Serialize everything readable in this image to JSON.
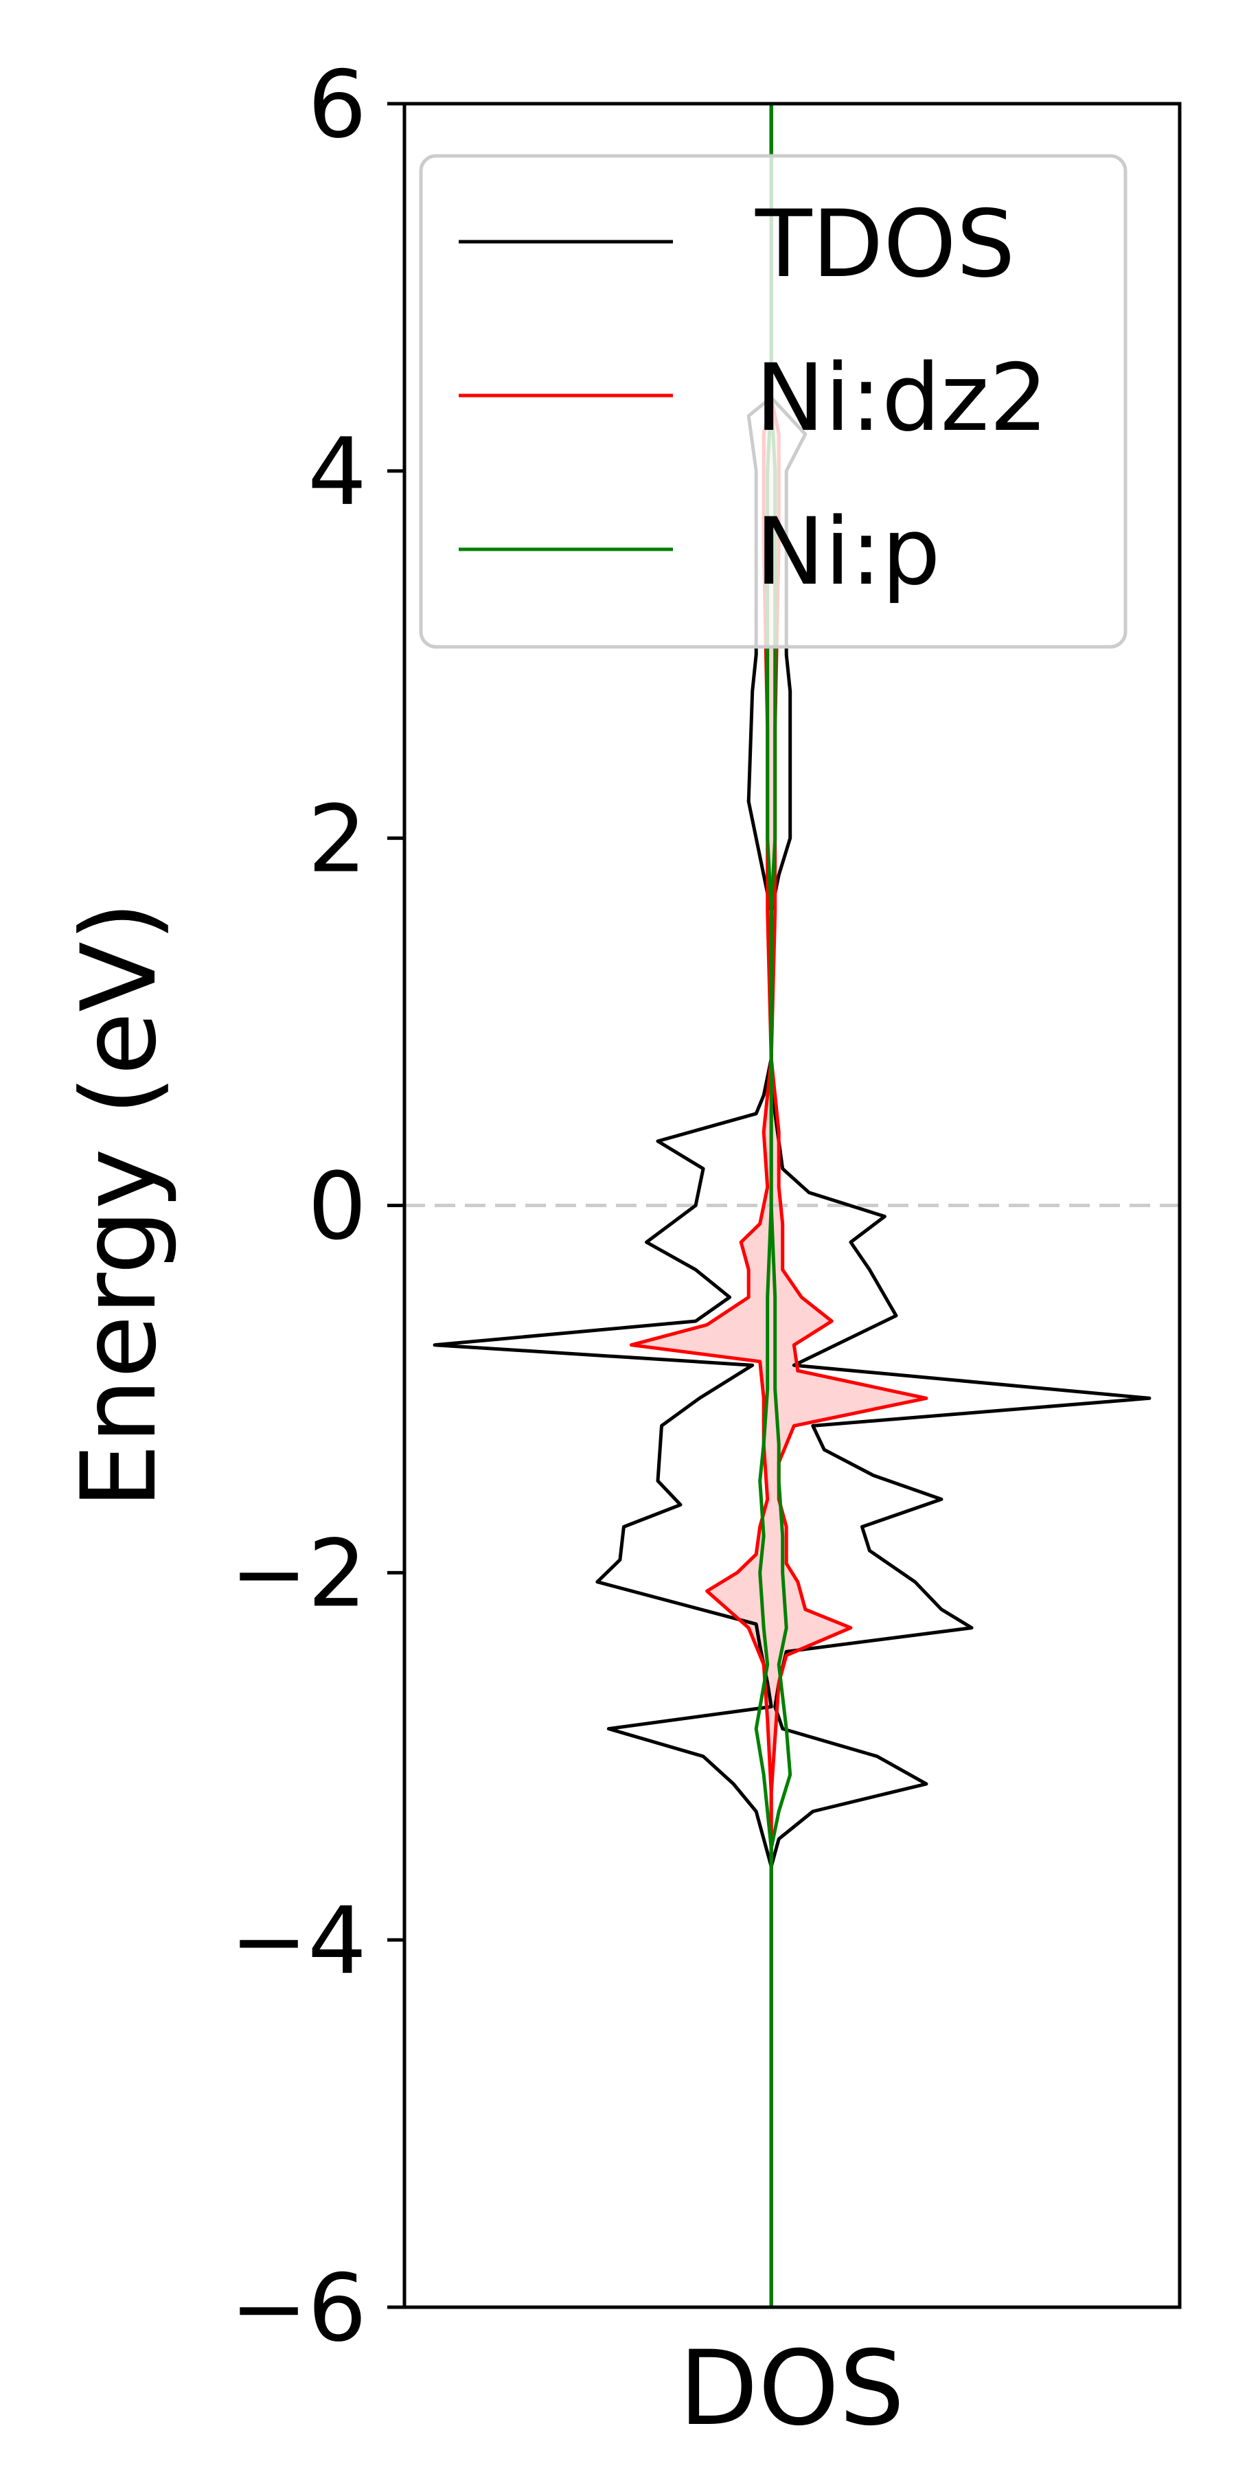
{
  "chart_data": {
    "type": "line",
    "orientation": "vertical-energy",
    "title": "",
    "xlabel": "DOS",
    "ylabel": "Energy (eV)",
    "ylim": [
      -6,
      6
    ],
    "xlim": [
      -0.97,
      1.08
    ],
    "yticks": [
      -6,
      -4,
      -2,
      0,
      2,
      4,
      6
    ],
    "ytick_labels": [
      "−6",
      "−4",
      "−2",
      "0",
      "2",
      "4",
      "6"
    ],
    "fermi_level": 0,
    "grid": false,
    "legend": {
      "placement": "top-left",
      "entries": [
        "TDOS",
        "Ni:dz2",
        "Ni:p"
      ]
    },
    "colors": {
      "TDOS": "#000000",
      "Ni:dz2": "#ff0000",
      "Ni:dz2_fill": "#ffcccc",
      "Ni:p": "#008000",
      "fermi": "#cccccc"
    },
    "series": [
      {
        "name": "TDOS",
        "side": "up",
        "points": [
          [
            0,
            6
          ],
          [
            0,
            4.4
          ],
          [
            -0.06,
            4.3
          ],
          [
            -0.04,
            4.0
          ],
          [
            -0.04,
            3.6
          ],
          [
            -0.04,
            3.0
          ],
          [
            -0.05,
            2.8
          ],
          [
            -0.06,
            2.2
          ],
          [
            -0.02,
            1.8
          ],
          [
            0,
            1.6
          ],
          [
            0,
            1.2
          ],
          [
            0,
            0.8
          ],
          [
            -0.02,
            0.6
          ],
          [
            -0.04,
            0.5
          ],
          [
            -0.3,
            0.35
          ],
          [
            -0.18,
            0.2
          ],
          [
            -0.2,
            0.0
          ],
          [
            -0.33,
            -0.2
          ],
          [
            -0.2,
            -0.35
          ],
          [
            -0.11,
            -0.5
          ],
          [
            -0.2,
            -0.63
          ],
          [
            -0.89,
            -0.76
          ],
          [
            -0.05,
            -0.87
          ],
          [
            -0.19,
            -1.05
          ],
          [
            -0.29,
            -1.2
          ],
          [
            -0.3,
            -1.5
          ],
          [
            -0.24,
            -1.63
          ],
          [
            -0.39,
            -1.75
          ],
          [
            -0.4,
            -1.93
          ],
          [
            -0.46,
            -2.05
          ],
          [
            -0.04,
            -2.28
          ],
          [
            -0.03,
            -2.4
          ],
          [
            -0.01,
            -2.6
          ],
          [
            0,
            -2.73
          ],
          [
            -0.43,
            -2.85
          ],
          [
            -0.18,
            -3.0
          ],
          [
            -0.1,
            -3.15
          ],
          [
            -0.04,
            -3.3
          ],
          [
            -0.02,
            -3.45
          ],
          [
            0,
            -3.6
          ],
          [
            0,
            -4.0
          ],
          [
            0,
            -5.0
          ],
          [
            0,
            -6
          ]
        ]
      },
      {
        "name": "TDOS",
        "side": "down",
        "points": [
          [
            0,
            6
          ],
          [
            0,
            4.4
          ],
          [
            0.09,
            4.2
          ],
          [
            0.04,
            4.0
          ],
          [
            0.04,
            3.6
          ],
          [
            0.04,
            3.0
          ],
          [
            0.05,
            2.8
          ],
          [
            0.05,
            2.0
          ],
          [
            0.02,
            1.8
          ],
          [
            0,
            1.6
          ],
          [
            0,
            1.2
          ],
          [
            0,
            0.8
          ],
          [
            0.01,
            0.5
          ],
          [
            0.03,
            0.2
          ],
          [
            0.1,
            0.07
          ],
          [
            0.3,
            -0.06
          ],
          [
            0.21,
            -0.2
          ],
          [
            0.26,
            -0.35
          ],
          [
            0.33,
            -0.6
          ],
          [
            0.06,
            -0.87
          ],
          [
            1.0,
            -1.05
          ],
          [
            0.11,
            -1.2
          ],
          [
            0.14,
            -1.33
          ],
          [
            0.27,
            -1.47
          ],
          [
            0.45,
            -1.6
          ],
          [
            0.24,
            -1.75
          ],
          [
            0.26,
            -1.88
          ],
          [
            0.38,
            -2.05
          ],
          [
            0.45,
            -2.2
          ],
          [
            0.53,
            -2.3
          ],
          [
            0.04,
            -2.43
          ],
          [
            0.02,
            -2.6
          ],
          [
            0.01,
            -2.73
          ],
          [
            0.03,
            -2.85
          ],
          [
            0.28,
            -3.0
          ],
          [
            0.41,
            -3.15
          ],
          [
            0.11,
            -3.3
          ],
          [
            0.02,
            -3.45
          ],
          [
            0,
            -3.6
          ],
          [
            0,
            -4.0
          ],
          [
            0,
            -5.0
          ],
          [
            0,
            -6
          ]
        ]
      },
      {
        "name": "Ni:dz2",
        "side": "up",
        "points": [
          [
            0,
            4.4
          ],
          [
            -0.02,
            4.2
          ],
          [
            -0.02,
            3.6
          ],
          [
            -0.01,
            2.6
          ],
          [
            -0.01,
            1.6
          ],
          [
            0,
            0.8
          ],
          [
            -0.01,
            0.6
          ],
          [
            -0.02,
            0.4
          ],
          [
            -0.01,
            0.1
          ],
          [
            -0.03,
            -0.1
          ],
          [
            -0.08,
            -0.2
          ],
          [
            -0.06,
            -0.35
          ],
          [
            -0.06,
            -0.5
          ],
          [
            -0.17,
            -0.65
          ],
          [
            -0.37,
            -0.76
          ],
          [
            -0.03,
            -0.85
          ],
          [
            -0.02,
            -1.05
          ],
          [
            -0.02,
            -1.3
          ],
          [
            -0.01,
            -1.6
          ],
          [
            -0.03,
            -1.75
          ],
          [
            -0.04,
            -1.9
          ],
          [
            -0.09,
            -2.0
          ],
          [
            -0.17,
            -2.1
          ],
          [
            -0.06,
            -2.3
          ],
          [
            -0.02,
            -2.5
          ],
          [
            -0.01,
            -2.8
          ],
          [
            0,
            -3.2
          ],
          [
            0,
            -3.5
          ],
          [
            0,
            -6
          ]
        ]
      },
      {
        "name": "Ni:dz2",
        "side": "down",
        "points": [
          [
            0,
            4.4
          ],
          [
            0.02,
            4.2
          ],
          [
            0.02,
            3.6
          ],
          [
            0.01,
            2.6
          ],
          [
            0.01,
            1.6
          ],
          [
            0,
            0.8
          ],
          [
            0.01,
            0.6
          ],
          [
            0.02,
            0.4
          ],
          [
            0.02,
            0.1
          ],
          [
            0.03,
            -0.1
          ],
          [
            0.03,
            -0.2
          ],
          [
            0.03,
            -0.35
          ],
          [
            0.08,
            -0.5
          ],
          [
            0.16,
            -0.63
          ],
          [
            0.06,
            -0.76
          ],
          [
            0.07,
            -0.9
          ],
          [
            0.41,
            -1.05
          ],
          [
            0.06,
            -1.2
          ],
          [
            0.02,
            -1.4
          ],
          [
            0.02,
            -1.6
          ],
          [
            0.04,
            -1.75
          ],
          [
            0.04,
            -1.95
          ],
          [
            0.07,
            -2.05
          ],
          [
            0.09,
            -2.2
          ],
          [
            0.21,
            -2.3
          ],
          [
            0.04,
            -2.45
          ],
          [
            0.02,
            -2.6
          ],
          [
            0.01,
            -2.9
          ],
          [
            0,
            -3.2
          ],
          [
            0,
            -3.5
          ],
          [
            0,
            -6
          ]
        ]
      },
      {
        "name": "Ni:p",
        "side": "up",
        "points": [
          [
            0,
            6
          ],
          [
            0,
            4.4
          ],
          [
            -0.01,
            4.0
          ],
          [
            -0.01,
            3.0
          ],
          [
            -0.01,
            2.0
          ],
          [
            0,
            1.6
          ],
          [
            0,
            1.0
          ],
          [
            0,
            0.5
          ],
          [
            0,
            0
          ],
          [
            -0.01,
            -0.5
          ],
          [
            -0.01,
            -1.0
          ],
          [
            -0.02,
            -1.3
          ],
          [
            -0.03,
            -1.5
          ],
          [
            -0.02,
            -1.8
          ],
          [
            -0.03,
            -2.0
          ],
          [
            -0.02,
            -2.3
          ],
          [
            -0.01,
            -2.5
          ],
          [
            -0.04,
            -2.85
          ],
          [
            -0.02,
            -3.1
          ],
          [
            -0.01,
            -3.3
          ],
          [
            0,
            -3.5
          ],
          [
            0,
            -4.0
          ],
          [
            0,
            -5.0
          ],
          [
            0,
            -6
          ]
        ]
      },
      {
        "name": "Ni:p",
        "side": "down",
        "points": [
          [
            0,
            6
          ],
          [
            0,
            4.4
          ],
          [
            0.01,
            4.0
          ],
          [
            0.01,
            3.0
          ],
          [
            0.01,
            2.0
          ],
          [
            0,
            1.6
          ],
          [
            0,
            1.0
          ],
          [
            0,
            0.5
          ],
          [
            0,
            0
          ],
          [
            0.01,
            -0.5
          ],
          [
            0.01,
            -1.0
          ],
          [
            0.02,
            -1.3
          ],
          [
            0.02,
            -1.5
          ],
          [
            0.03,
            -1.8
          ],
          [
            0.03,
            -2.0
          ],
          [
            0.04,
            -2.3
          ],
          [
            0.02,
            -2.5
          ],
          [
            0.04,
            -2.85
          ],
          [
            0.05,
            -3.1
          ],
          [
            0.02,
            -3.3
          ],
          [
            0,
            -3.5
          ],
          [
            0,
            -4.0
          ],
          [
            0,
            -5.0
          ],
          [
            0,
            -6
          ]
        ]
      }
    ]
  }
}
